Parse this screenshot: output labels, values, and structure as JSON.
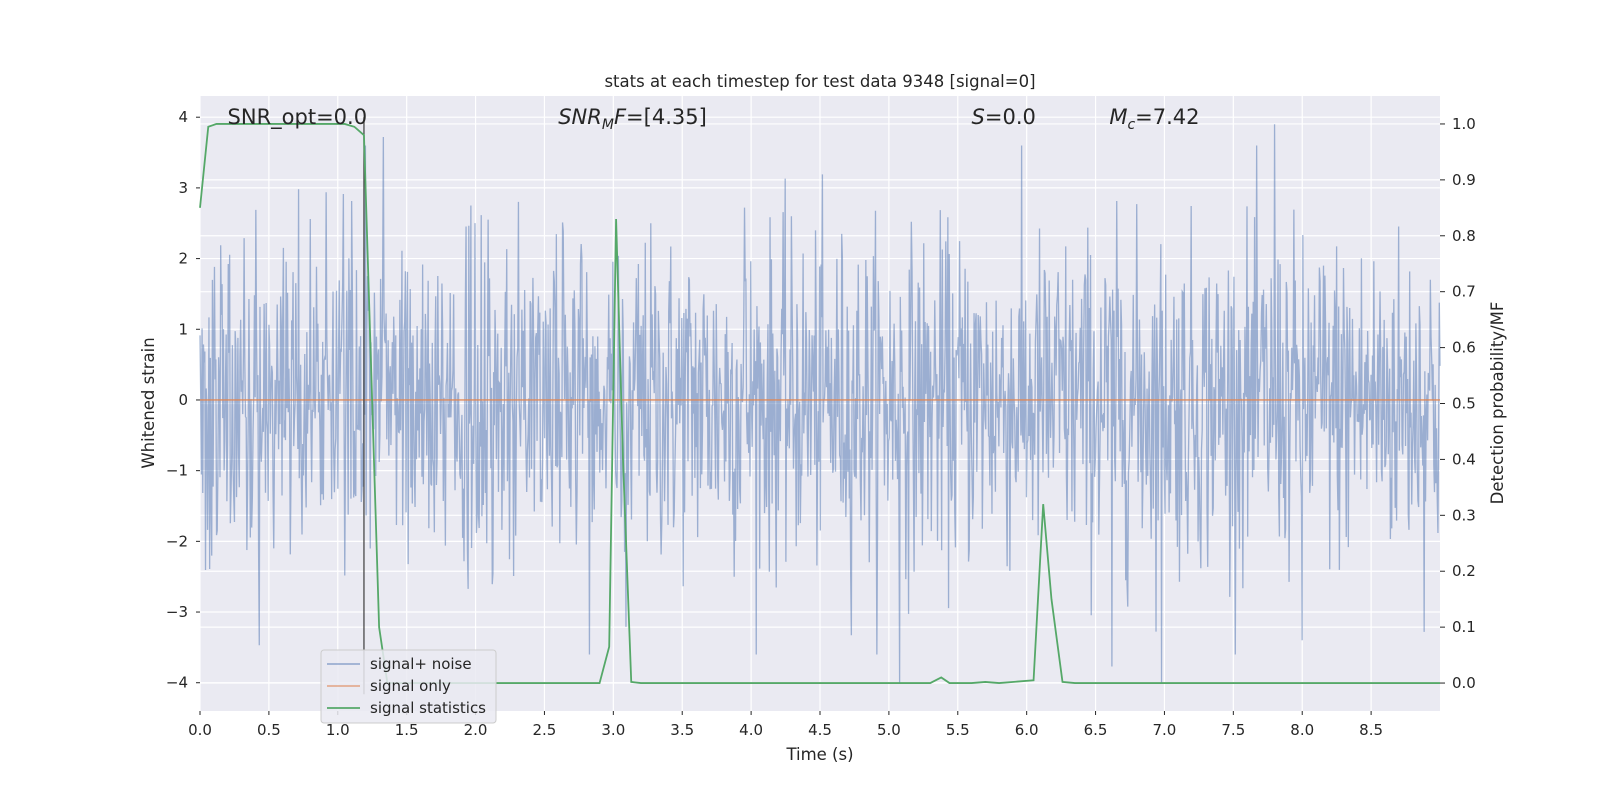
{
  "chart_data": {
    "type": "line",
    "title": "stats at each timestep for test data 9348 [signal=0]",
    "xlabel": "Time (s)",
    "ylabel": "Whitened strain",
    "y2label": "Detection probability/MF",
    "xlim": [
      0.0,
      9.0
    ],
    "ylim": [
      -4.4,
      4.3
    ],
    "y2lim": [
      -0.05,
      1.05
    ],
    "xticks": [
      "0.0",
      "0.5",
      "1.0",
      "1.5",
      "2.0",
      "2.5",
      "3.0",
      "3.5",
      "4.0",
      "4.5",
      "5.0",
      "5.5",
      "6.0",
      "6.5",
      "7.0",
      "7.5",
      "8.0",
      "8.5"
    ],
    "yticks": [
      "−4",
      "−3",
      "−2",
      "−1",
      "0",
      "1",
      "2",
      "3",
      "4"
    ],
    "y2ticks": [
      "0.0",
      "0.1",
      "0.2",
      "0.3",
      "0.4",
      "0.5",
      "0.6",
      "0.7",
      "0.8",
      "0.9",
      "1.0"
    ],
    "grid": true,
    "legend_placement": "lower-left",
    "annotations": [
      {
        "id": "snr-opt",
        "text": "SNR_opt=0.0",
        "x": 0.2
      },
      {
        "id": "snr-mf",
        "text": "SNR_MF=[4.35]",
        "x": 2.6
      },
      {
        "id": "s-stat",
        "text": "S=0.0",
        "x": 5.6
      },
      {
        "id": "mchirp",
        "text": "M_c=7.42",
        "x": 6.6
      }
    ],
    "marker_line_x": 1.19,
    "series": [
      {
        "name": "signal+ noise",
        "axis": "left",
        "color": "#4c72b0",
        "opacity": 0.5,
        "description": "whitened strain noise, approx. Gaussian, sigma ~1, sampled densely over 0-9 s",
        "sigma": 1.0,
        "n_samples": 1800,
        "peaks": [
          {
            "x": 7.8,
            "y": 3.9
          },
          {
            "x": 1.33,
            "y": 3.72
          },
          {
            "x": 1.2,
            "y": 3.6
          },
          {
            "x": 5.08,
            "y": -4.0
          },
          {
            "x": 6.98,
            "y": -4.0
          },
          {
            "x": 0.43,
            "y": -3.47
          },
          {
            "x": 8.0,
            "y": -3.4
          },
          {
            "x": 3.95,
            "y": 2.72
          },
          {
            "x": 6.62,
            "y": -3.77
          }
        ]
      },
      {
        "name": "signal only",
        "axis": "left",
        "color": "#dd8452",
        "x": [
          0.0,
          9.0
        ],
        "y": [
          0.0,
          0.0
        ]
      },
      {
        "name": "signal statistics",
        "axis": "right",
        "color": "#55a868",
        "x": [
          0.0,
          0.06,
          0.12,
          0.2,
          0.5,
          0.8,
          1.0,
          1.05,
          1.12,
          1.19,
          1.25,
          1.3,
          1.36,
          1.45,
          2.9,
          2.97,
          3.02,
          3.07,
          3.13,
          3.2,
          5.3,
          5.38,
          5.44,
          5.6,
          5.7,
          5.8,
          6.05,
          6.12,
          6.18,
          6.26,
          6.35,
          9.0
        ],
        "y": [
          0.85,
          0.995,
          1.0,
          1.0,
          1.0,
          1.0,
          1.0,
          1.0,
          0.995,
          0.98,
          0.5,
          0.1,
          0.0,
          0.0,
          0.0,
          0.065,
          0.83,
          0.4,
          0.002,
          0.0,
          0.0,
          0.01,
          0.0,
          0.0,
          0.002,
          0.0,
          0.005,
          0.32,
          0.15,
          0.002,
          0.0,
          0.0
        ]
      }
    ]
  }
}
